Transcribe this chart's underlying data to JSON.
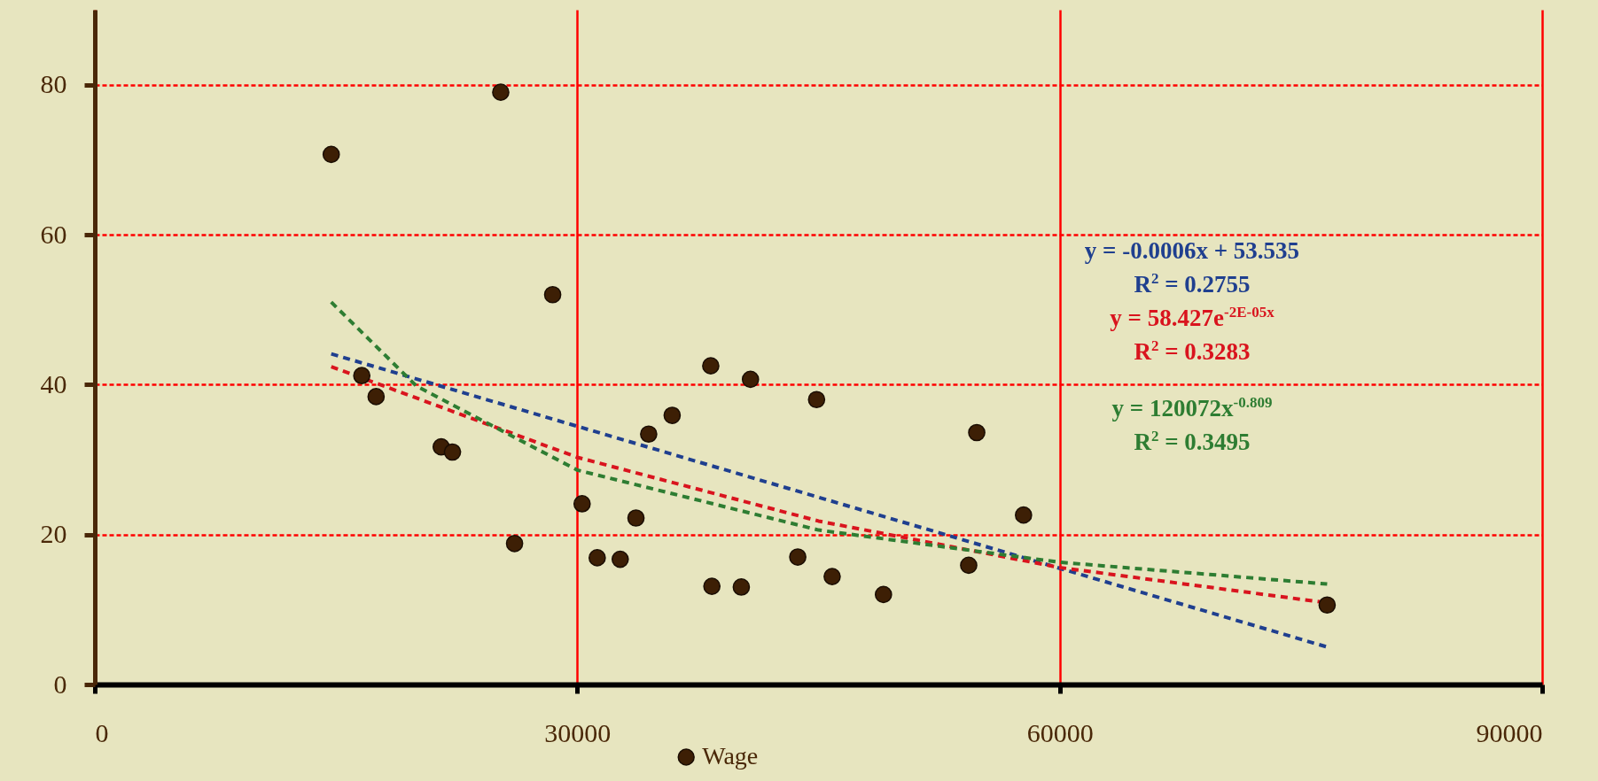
{
  "chart_data": {
    "type": "scatter",
    "xlim": [
      0,
      90000
    ],
    "ylim": [
      0,
      90
    ],
    "xticks": [
      0,
      30000,
      60000,
      90000
    ],
    "yticks": [
      0,
      20,
      40,
      60,
      80
    ],
    "grid": true,
    "legend": "bottom",
    "series": [
      {
        "name": "Wage",
        "marker": "circle",
        "color": "#3d1f05",
        "x": [
          14700,
          16600,
          17490,
          21540,
          22240,
          25240,
          26100,
          28470,
          30300,
          31240,
          32670,
          33650,
          34440,
          35900,
          38300,
          38370,
          40200,
          40770,
          43710,
          44880,
          45850,
          49040,
          54340,
          54840,
          57750,
          76630
        ],
        "values": [
          70.7,
          41.2,
          38.4,
          31.7,
          31.0,
          79.0,
          18.8,
          52.0,
          24.1,
          16.9,
          16.7,
          22.2,
          33.4,
          35.9,
          42.5,
          13.1,
          13.0,
          40.7,
          17.0,
          38.0,
          14.4,
          12.0,
          15.9,
          33.6,
          22.6,
          10.6
        ]
      },
      {
        "type": "line",
        "color": "#1f3f8f",
        "line_style": "dashed",
        "x": [
          14700,
          76630
        ],
        "values": [
          44.1,
          5.0
        ]
      },
      {
        "type": "line",
        "color": "#d9141e",
        "line_style": "dashed",
        "x": [
          14700,
          30000,
          45000,
          60000,
          76630
        ],
        "values": [
          42.4,
          30.3,
          21.8,
          15.6,
          10.9
        ]
      },
      {
        "type": "line",
        "color": "#2e7d32",
        "line_style": "dashed",
        "x": [
          14700,
          20000,
          30000,
          45000,
          60000,
          76630
        ],
        "values": [
          51.0,
          39.8,
          28.6,
          20.6,
          16.3,
          13.4
        ]
      }
    ],
    "annotations": [
      "y = -0.0006x + 53.535",
      "R$^{2}$ = 0.2755",
      "y = 58.427e$^{-2E-05x}$",
      "R$^{2}$ = 0.3283",
      "y = 120072x$^{-0.809}$",
      "R$^{2}$ = 0.3495"
    ]
  }
}
